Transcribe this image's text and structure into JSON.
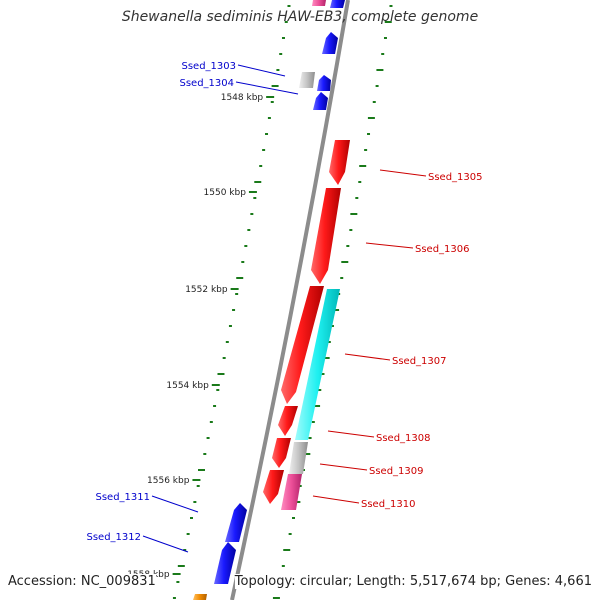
{
  "title": "Shewanella sediminis HAW-EB3, complete genome",
  "footer": {
    "accession_label": "Accession:",
    "accession": "NC_009831",
    "topology_label": "Topology:",
    "topology": "circular",
    "length_label": "Length:",
    "length": "5,517,674 bp",
    "genes_label": "Genes:",
    "genes": "4,661"
  },
  "colors": {
    "forward_gene": "#e00000",
    "reverse_gene": "#0000e0",
    "cyan_gene": "#00e5e5",
    "pink_gene": "#e5408f",
    "gray_gene": "#bdbdbd",
    "orange_gene": "#f08a00",
    "backbone": "#8c8c8c",
    "tick": "#1a7a1a",
    "forward_label": "#cc0000",
    "reverse_label": "#0000cc"
  },
  "scale_labels": [
    "1548 kbp",
    "1550 kbp",
    "1552 kbp",
    "1554 kbp",
    "1556 kbp",
    "1558 kbp"
  ],
  "gene_labels": [
    {
      "name": "Ssed_1303",
      "strand": "reverse"
    },
    {
      "name": "Ssed_1304",
      "strand": "reverse"
    },
    {
      "name": "Ssed_1305",
      "strand": "forward"
    },
    {
      "name": "Ssed_1306",
      "strand": "forward"
    },
    {
      "name": "Ssed_1307",
      "strand": "forward"
    },
    {
      "name": "Ssed_1308",
      "strand": "forward"
    },
    {
      "name": "Ssed_1309",
      "strand": "forward"
    },
    {
      "name": "Ssed_1310",
      "strand": "forward"
    },
    {
      "name": "Ssed_1311",
      "strand": "reverse"
    },
    {
      "name": "Ssed_1312",
      "strand": "reverse"
    }
  ]
}
